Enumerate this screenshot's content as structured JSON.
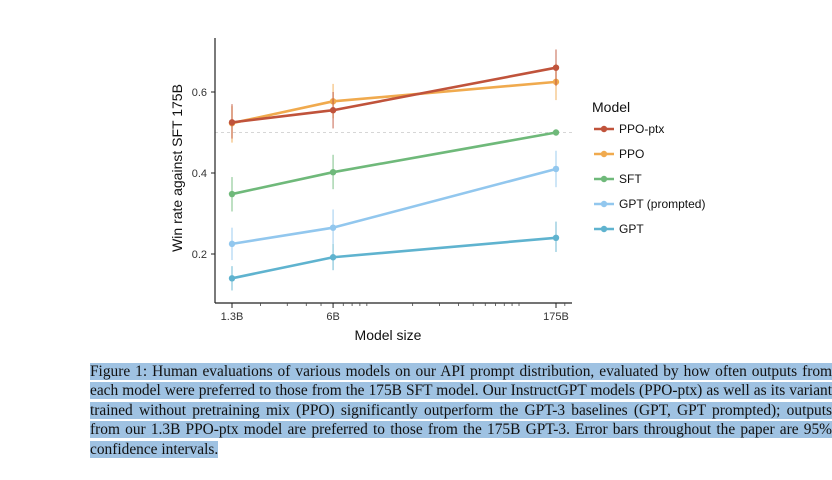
{
  "chart_data": {
    "type": "line",
    "xlabel": "Model size",
    "ylabel": "Win rate against SFT 175B",
    "x_scale": "log",
    "categories": [
      "1.3B",
      "6B",
      "175B"
    ],
    "x_values_billions": [
      1.3,
      6,
      175
    ],
    "ylim": [
      0.09,
      0.75
    ],
    "yticks": [
      0.2,
      0.4,
      0.6
    ],
    "ytick_labels": [
      "0.2",
      "0.4",
      "0.6"
    ],
    "reference_line": 0.5,
    "grid": false,
    "legend": {
      "title": "Model",
      "placement": "right"
    },
    "series": [
      {
        "name": "PPO-ptx",
        "color": "#c0533b",
        "values": [
          0.525,
          0.555,
          0.66
        ],
        "err_low": [
          0.485,
          0.51,
          0.615
        ],
        "err_high": [
          0.57,
          0.6,
          0.705
        ]
      },
      {
        "name": "PPO",
        "color": "#f0aa4e",
        "values": [
          0.523,
          0.577,
          0.625
        ],
        "err_low": [
          0.475,
          0.535,
          0.58
        ],
        "err_high": [
          0.565,
          0.62,
          0.67
        ]
      },
      {
        "name": "SFT",
        "color": "#6fb97a",
        "values": [
          0.348,
          0.402,
          0.5
        ],
        "err_low": [
          0.305,
          0.36,
          0.5
        ],
        "err_high": [
          0.39,
          0.445,
          0.5
        ]
      },
      {
        "name": "GPT (prompted)",
        "color": "#92c7ee",
        "values": [
          0.225,
          0.265,
          0.41
        ],
        "err_low": [
          0.185,
          0.225,
          0.365
        ],
        "err_high": [
          0.265,
          0.31,
          0.455
        ]
      },
      {
        "name": "GPT",
        "color": "#5fb3cf",
        "values": [
          0.14,
          0.192,
          0.24
        ],
        "err_low": [
          0.11,
          0.16,
          0.205
        ],
        "err_high": [
          0.17,
          0.225,
          0.28
        ]
      }
    ]
  },
  "caption": {
    "text": "Figure 1: Human evaluations of various models on our API prompt distribution, evaluated by how often outputs from each model were preferred to those from the 175B SFT model. Our InstructGPT models (PPO-ptx) as well as its variant trained without pretraining mix (PPO) significantly outperform the GPT-3 baselines (GPT, GPT prompted); outputs from our 1.3B PPO-ptx model are preferred to those from the 175B GPT-3. Error bars throughout the paper are 95% confidence intervals.",
    "highlight_color": "#9fc2e2"
  }
}
